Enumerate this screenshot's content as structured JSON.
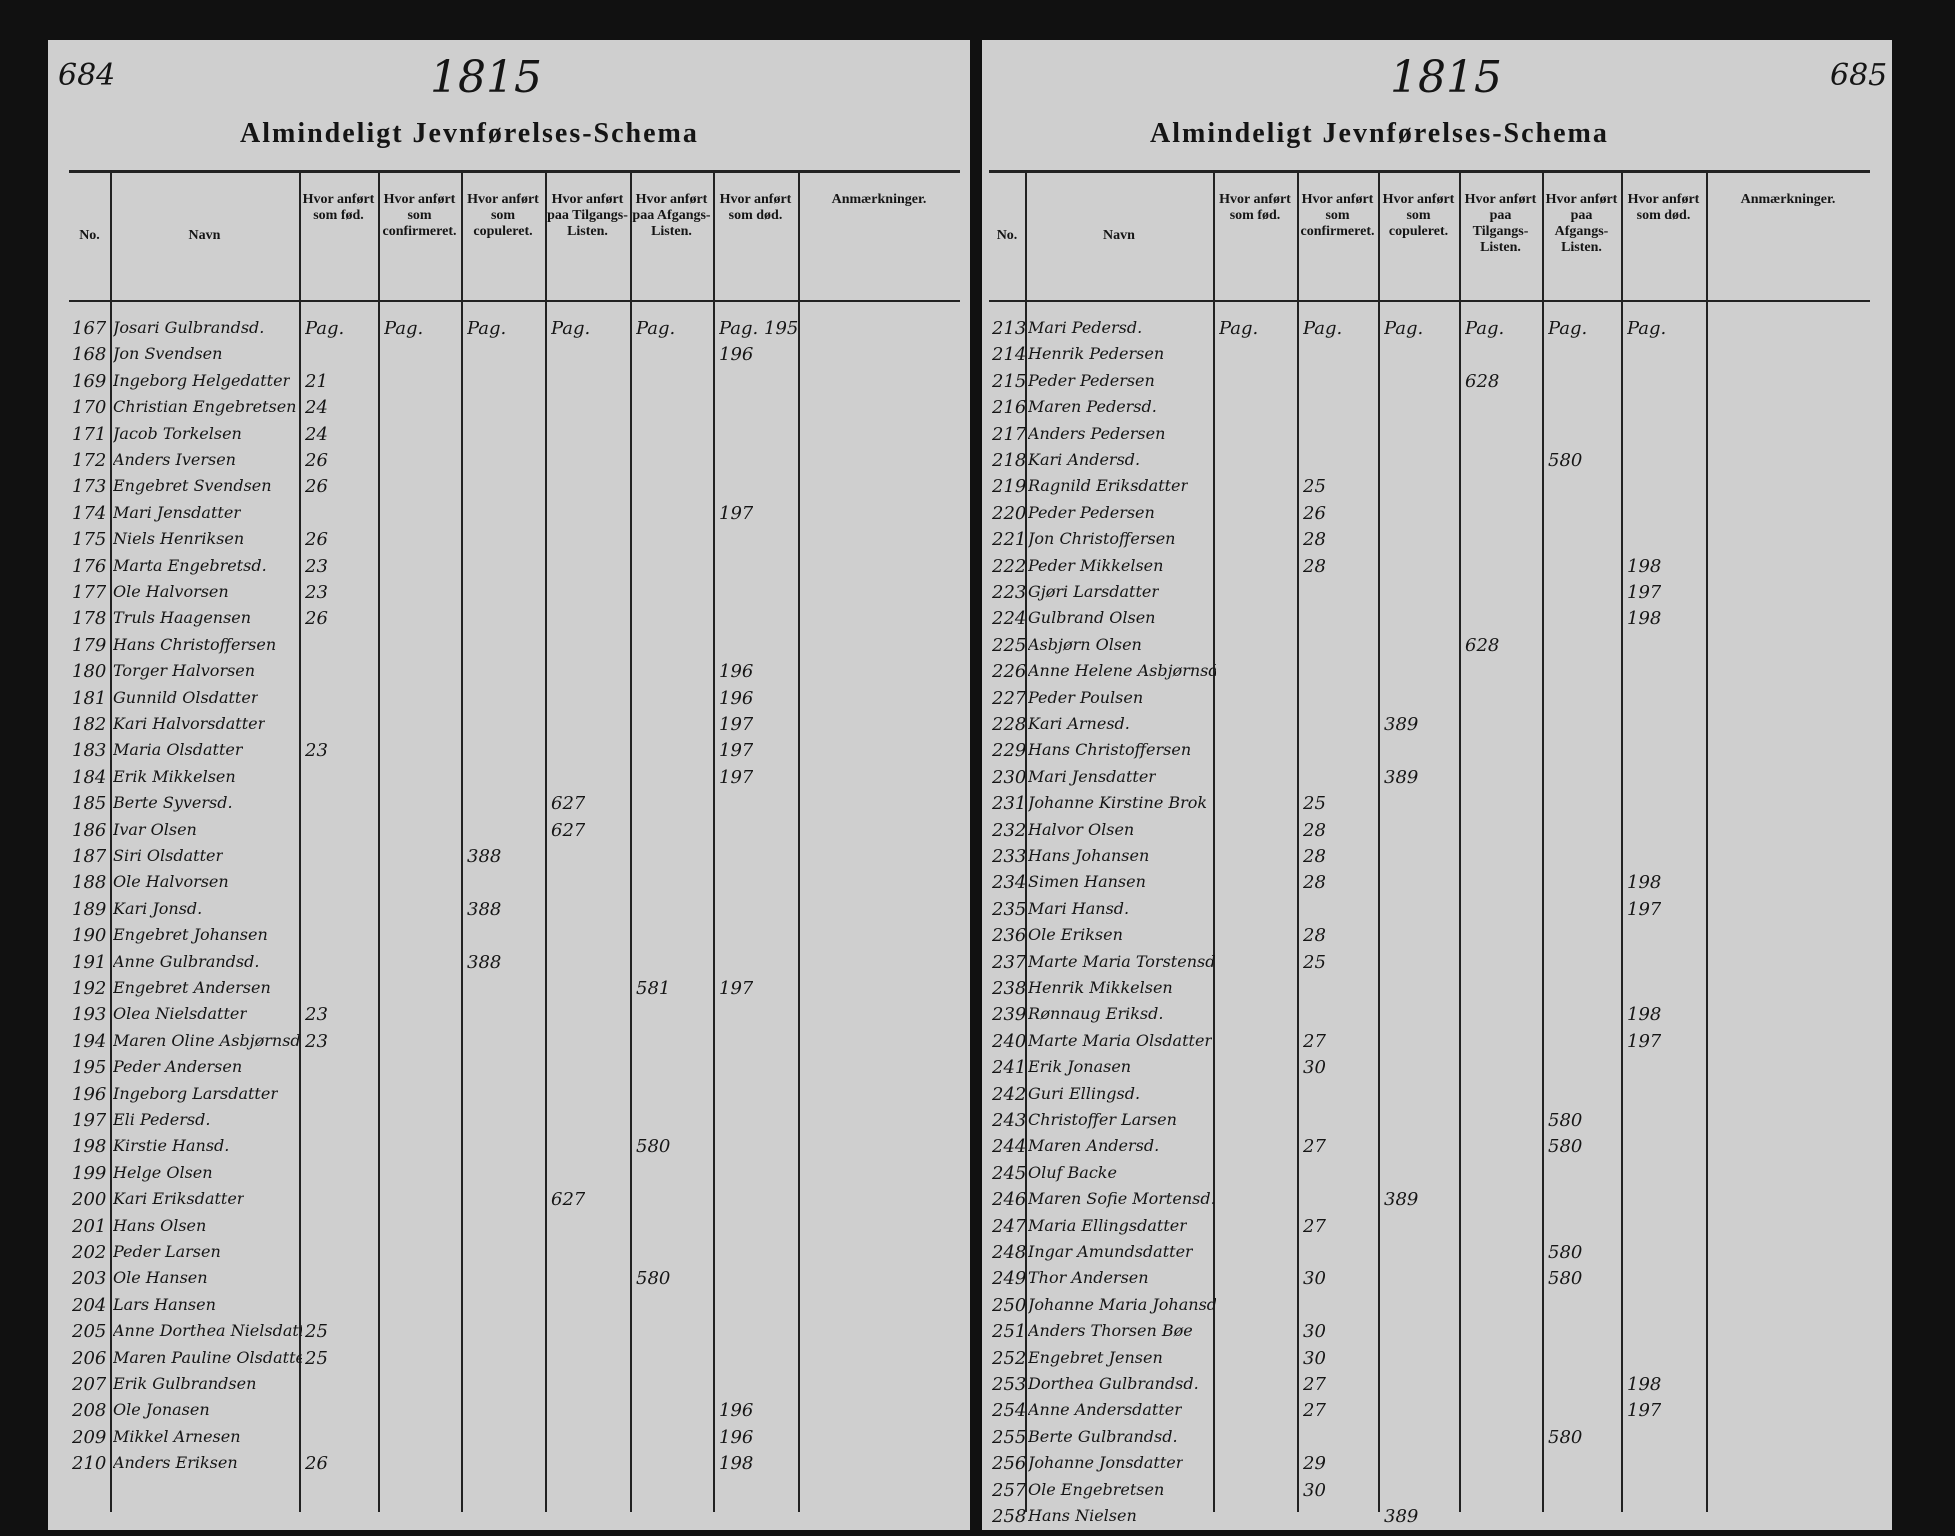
{
  "pages": [
    {
      "page_number": "684",
      "year": "1815",
      "title": "Almindeligt Jevnførelses-Schema",
      "headers": [
        "No.",
        "Navn",
        "Hvor anført som fød.",
        "Hvor anført som confirmeret.",
        "Hvor anført som copuleret.",
        "Hvor anført paa Tilgangs-Listen.",
        "Hvor anført paa Afgangs-Listen.",
        "Hvor anført som død.",
        "Anmærkninger."
      ],
      "rows": [
        {
          "no": "167",
          "name": "Josari Gulbrandsd.",
          "fod": "Pag.",
          "konf": "Pag.",
          "cop": "Pag.",
          "tilg": "Pag.",
          "afg": "Pag.",
          "dod": "Pag. 195"
        },
        {
          "no": "168",
          "name": "Jon Svendsen",
          "dod": "196"
        },
        {
          "no": "169",
          "name": "Ingeborg Helgedatter",
          "fod": "21"
        },
        {
          "no": "170",
          "name": "Christian Engebretsen",
          "fod": "24"
        },
        {
          "no": "171",
          "name": "Jacob Torkelsen",
          "fod": "24"
        },
        {
          "no": "172",
          "name": "Anders Iversen",
          "fod": "26"
        },
        {
          "no": "173",
          "name": "Engebret Svendsen",
          "fod": "26"
        },
        {
          "no": "174",
          "name": "Mari Jensdatter",
          "dod": "197"
        },
        {
          "no": "175",
          "name": "Niels Henriksen",
          "fod": "26"
        },
        {
          "no": "176",
          "name": "Marta Engebretsd.",
          "fod": "23"
        },
        {
          "no": "177",
          "name": "Ole Halvorsen",
          "fod": "23"
        },
        {
          "no": "178",
          "name": "Truls Haagensen",
          "fod": "26"
        },
        {
          "no": "179",
          "name": "Hans Christoffersen"
        },
        {
          "no": "180",
          "name": "Torger Halvorsen",
          "dod": "196"
        },
        {
          "no": "181",
          "name": "Gunnild Olsdatter",
          "dod": "196"
        },
        {
          "no": "182",
          "name": "Kari Halvorsdatter",
          "dod": "197"
        },
        {
          "no": "183",
          "name": "Maria Olsdatter",
          "fod": "23",
          "dod": "197"
        },
        {
          "no": "184",
          "name": "Erik Mikkelsen",
          "dod": "197"
        },
        {
          "no": "185",
          "name": "Berte Syversd.",
          "tilg": "627"
        },
        {
          "no": "186",
          "name": "Ivar Olsen",
          "tilg": "627"
        },
        {
          "no": "187",
          "name": "Siri Olsdatter",
          "cop": "388"
        },
        {
          "no": "188",
          "name": "Ole Halvorsen"
        },
        {
          "no": "189",
          "name": "Kari Jonsd.",
          "cop": "388"
        },
        {
          "no": "190",
          "name": "Engebret Johansen"
        },
        {
          "no": "191",
          "name": "Anne Gulbrandsd.",
          "cop": "388"
        },
        {
          "no": "192",
          "name": "Engebret Andersen",
          "afg": "581",
          "dod": "197"
        },
        {
          "no": "193",
          "name": "Olea Nielsdatter",
          "fod": "23"
        },
        {
          "no": "194",
          "name": "Maren Oline Asbjørnsd.",
          "fod": "23"
        },
        {
          "no": "195",
          "name": "Peder Andersen"
        },
        {
          "no": "196",
          "name": "Ingeborg Larsdatter"
        },
        {
          "no": "197",
          "name": "Eli Pedersd."
        },
        {
          "no": "198",
          "name": "Kirstie Hansd.",
          "afg": "580"
        },
        {
          "no": "199",
          "name": "Helge Olsen"
        },
        {
          "no": "200",
          "name": "Kari Eriksdatter",
          "tilg": "627"
        },
        {
          "no": "201",
          "name": "Hans Olsen"
        },
        {
          "no": "202",
          "name": "Peder Larsen"
        },
        {
          "no": "203",
          "name": "Ole Hansen",
          "afg": "580"
        },
        {
          "no": "204",
          "name": "Lars Hansen"
        },
        {
          "no": "205",
          "name": "Anne Dorthea Nielsdatter",
          "fod": "25"
        },
        {
          "no": "206",
          "name": "Maren Pauline Olsdatter",
          "fod": "25"
        },
        {
          "no": "207",
          "name": "Erik Gulbrandsen"
        },
        {
          "no": "208",
          "name": "Ole Jonasen",
          "dod": "196"
        },
        {
          "no": "209",
          "name": "Mikkel Arnesen",
          "dod": "196"
        },
        {
          "no": "210",
          "name": "Anders Eriksen",
          "fod": "26",
          "dod": "198"
        }
      ]
    },
    {
      "page_number": "685",
      "year": "1815",
      "title": "Almindeligt Jevnførelses-Schema",
      "headers": [
        "No.",
        "Navn",
        "Hvor anført som fød.",
        "Hvor anført som confirmeret.",
        "Hvor anført som copuleret.",
        "Hvor anført paa Tilgangs-Listen.",
        "Hvor anført paa Afgangs-Listen.",
        "Hvor anført som død.",
        "Anmærkninger."
      ],
      "rows": [
        {
          "no": "213",
          "name": "Mari Pedersd.",
          "fod": "Pag.",
          "konf": "Pag.",
          "cop": "Pag.",
          "tilg": "Pag.",
          "afg": "Pag.",
          "dod": "Pag."
        },
        {
          "no": "214",
          "name": "Henrik Pedersen"
        },
        {
          "no": "215",
          "name": "Peder Pedersen",
          "tilg": "628"
        },
        {
          "no": "216",
          "name": "Maren Pedersd."
        },
        {
          "no": "217",
          "name": "Anders Pedersen"
        },
        {
          "no": "218",
          "name": "Kari Andersd.",
          "afg": "580"
        },
        {
          "no": "219",
          "name": "Ragnild Eriksdatter",
          "konf": "25"
        },
        {
          "no": "220",
          "name": "Peder Pedersen",
          "konf": "26"
        },
        {
          "no": "221",
          "name": "Jon Christoffersen",
          "konf": "28"
        },
        {
          "no": "222",
          "name": "Peder Mikkelsen",
          "konf": "28",
          "dod": "198"
        },
        {
          "no": "223",
          "name": "Gjøri Larsdatter",
          "dod": "197"
        },
        {
          "no": "224",
          "name": "Gulbrand Olsen",
          "dod": "198"
        },
        {
          "no": "225",
          "name": "Asbjørn Olsen",
          "tilg": "628"
        },
        {
          "no": "226",
          "name": "Anne Helene Asbjørnsd."
        },
        {
          "no": "227",
          "name": "Peder Poulsen"
        },
        {
          "no": "228",
          "name": "Kari Arnesd.",
          "cop": "389"
        },
        {
          "no": "229",
          "name": "Hans Christoffersen"
        },
        {
          "no": "230",
          "name": "Mari Jensdatter",
          "cop": "389"
        },
        {
          "no": "231",
          "name": "Johanne Kirstine Brok",
          "konf": "25"
        },
        {
          "no": "232",
          "name": "Halvor Olsen",
          "konf": "28"
        },
        {
          "no": "233",
          "name": "Hans Johansen",
          "konf": "28"
        },
        {
          "no": "234",
          "name": "Simen Hansen",
          "konf": "28",
          "dod": "198"
        },
        {
          "no": "235",
          "name": "Mari Hansd.",
          "dod": "197"
        },
        {
          "no": "236",
          "name": "Ole Eriksen",
          "konf": "28"
        },
        {
          "no": "237",
          "name": "Marte Maria Torstensd.",
          "konf": "25"
        },
        {
          "no": "238",
          "name": "Henrik Mikkelsen"
        },
        {
          "no": "239",
          "name": "Rønnaug Eriksd.",
          "dod": "198"
        },
        {
          "no": "240",
          "name": "Marte Maria Olsdatter",
          "konf": "27",
          "dod": "197"
        },
        {
          "no": "241",
          "name": "Erik Jonasen",
          "konf": "30"
        },
        {
          "no": "242",
          "name": "Guri Ellingsd."
        },
        {
          "no": "243",
          "name": "Christoffer Larsen",
          "afg": "580"
        },
        {
          "no": "244",
          "name": "Maren Andersd.",
          "konf": "27",
          "afg": "580"
        },
        {
          "no": "245",
          "name": "Oluf Backe"
        },
        {
          "no": "246",
          "name": "Maren Sofie Mortensd.",
          "cop": "389"
        },
        {
          "no": "247",
          "name": "Maria Ellingsdatter",
          "konf": "27"
        },
        {
          "no": "248",
          "name": "Ingar Amundsdatter",
          "afg": "580"
        },
        {
          "no": "249",
          "name": "Thor Andersen",
          "konf": "30",
          "afg": "580"
        },
        {
          "no": "250",
          "name": "Johanne Maria Johansd."
        },
        {
          "no": "251",
          "name": "Anders Thorsen Bøe",
          "konf": "30"
        },
        {
          "no": "252",
          "name": "Engebret Jensen",
          "konf": "30"
        },
        {
          "no": "253",
          "name": "Dorthea Gulbrandsd.",
          "konf": "27",
          "dod": "198"
        },
        {
          "no": "254",
          "name": "Anne Andersdatter",
          "konf": "27",
          "dod": "197"
        },
        {
          "no": "255",
          "name": "Berte Gulbrandsd.",
          "afg": "580"
        },
        {
          "no": "256",
          "name": "Johanne Jonsdatter",
          "konf": "29"
        },
        {
          "no": "257",
          "name": "Ole Engebretsen",
          "konf": "30"
        },
        {
          "no": "258",
          "name": "Hans Nielsen",
          "cop": "389"
        }
      ]
    }
  ]
}
